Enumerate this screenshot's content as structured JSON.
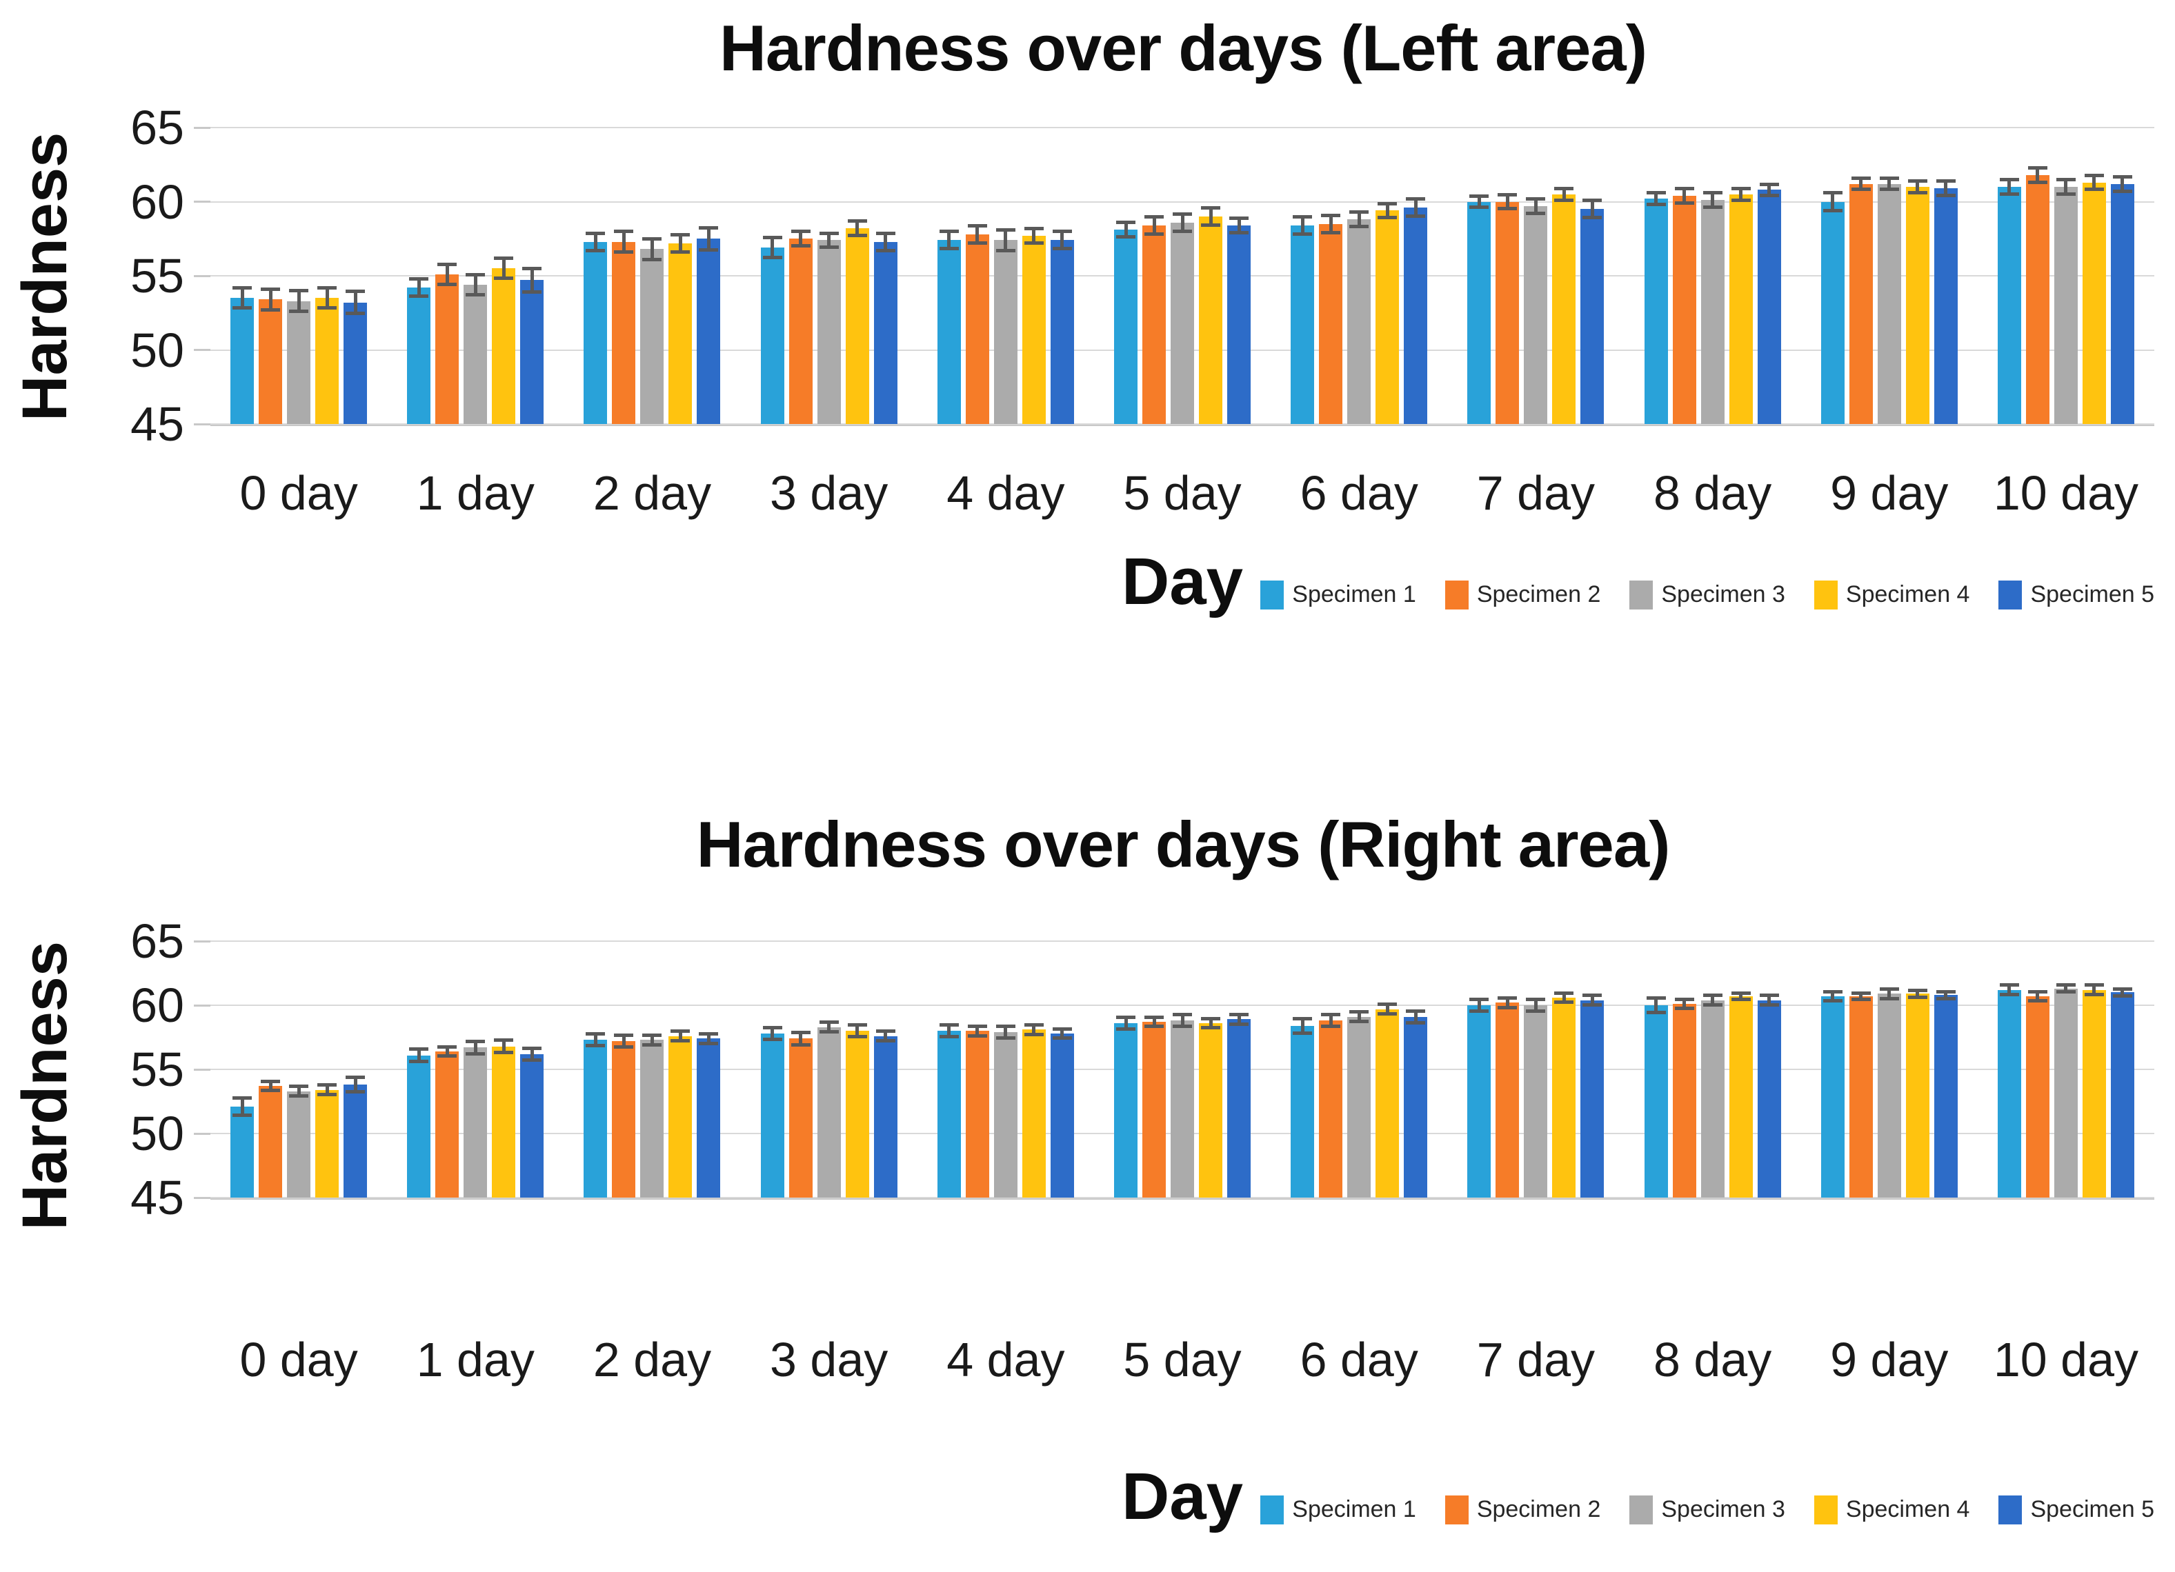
{
  "style": {
    "background": "#FFFFFF",
    "grid_color": "#D9D9D9",
    "axis_color": "#C8C8C8",
    "error_bar_color": "#595959",
    "text_color": "#1A1A1A"
  },
  "chart_data": [
    {
      "type": "bar",
      "title": "Hardness over days (Left area)",
      "xlabel": "Day",
      "ylabel": "Hardness",
      "ylim": [
        45,
        65
      ],
      "yticks": [
        65,
        60,
        55,
        50,
        45
      ],
      "grid": true,
      "error_bars": true,
      "legend_position": "bottom-right",
      "categories": [
        "0 day",
        "1 day",
        "2 day",
        "3 day",
        "4 day",
        "5 day",
        "6 day",
        "7 day",
        "8 day",
        "9 day",
        "10 day"
      ],
      "series": [
        {
          "name": "Specimen 1",
          "color": "#29A2D9",
          "values": [
            53.5,
            54.2,
            57.3,
            56.9,
            57.4,
            58.1,
            58.4,
            60.0,
            60.2,
            60.0,
            61.0
          ],
          "errors": [
            0.8,
            0.7,
            0.7,
            0.8,
            0.7,
            0.6,
            0.7,
            0.5,
            0.5,
            0.7,
            0.6
          ]
        },
        {
          "name": "Specimen 2",
          "color": "#F67C28",
          "values": [
            53.4,
            55.1,
            57.3,
            57.5,
            57.8,
            58.4,
            58.5,
            60.0,
            60.4,
            61.2,
            61.8
          ],
          "errors": [
            0.8,
            0.8,
            0.8,
            0.6,
            0.7,
            0.7,
            0.7,
            0.6,
            0.6,
            0.5,
            0.6
          ]
        },
        {
          "name": "Specimen 3",
          "color": "#ABABAB",
          "values": [
            53.3,
            54.4,
            56.8,
            57.4,
            57.4,
            58.6,
            58.8,
            59.7,
            60.1,
            61.2,
            61.0
          ],
          "errors": [
            0.8,
            0.8,
            0.8,
            0.6,
            0.8,
            0.7,
            0.6,
            0.6,
            0.6,
            0.5,
            0.6
          ]
        },
        {
          "name": "Specimen 4",
          "color": "#FFC30F",
          "values": [
            53.5,
            55.5,
            57.2,
            58.2,
            57.7,
            59.0,
            59.4,
            60.5,
            60.5,
            61.0,
            61.3
          ],
          "errors": [
            0.8,
            0.8,
            0.7,
            0.6,
            0.6,
            0.7,
            0.6,
            0.5,
            0.5,
            0.5,
            0.6
          ]
        },
        {
          "name": "Specimen 5",
          "color": "#2D6CC8",
          "values": [
            53.2,
            54.7,
            57.5,
            57.3,
            57.4,
            58.4,
            59.6,
            59.5,
            60.8,
            60.9,
            61.2
          ],
          "errors": [
            0.85,
            0.9,
            0.85,
            0.7,
            0.7,
            0.6,
            0.7,
            0.7,
            0.5,
            0.6,
            0.6
          ]
        }
      ]
    },
    {
      "type": "bar",
      "title": "Hardness over days (Right area)",
      "xlabel": "Day",
      "ylabel": "Hardness",
      "ylim": [
        45,
        65
      ],
      "yticks": [
        65,
        60,
        55,
        50,
        45
      ],
      "grid": true,
      "error_bars": true,
      "legend_position": "bottom-right",
      "categories": [
        "0 day",
        "1 day",
        "2 day",
        "3 day",
        "4 day",
        "5 day",
        "6 day",
        "7 day",
        "8 day",
        "9 day",
        "10 day"
      ],
      "series": [
        {
          "name": "Specimen 1",
          "color": "#29A2D9",
          "values": [
            52.1,
            56.1,
            57.3,
            57.8,
            58.0,
            58.6,
            58.4,
            60.0,
            60.0,
            60.7,
            61.2
          ],
          "errors": [
            0.8,
            0.6,
            0.6,
            0.6,
            0.6,
            0.6,
            0.7,
            0.6,
            0.7,
            0.5,
            0.5
          ]
        },
        {
          "name": "Specimen 2",
          "color": "#F67C28",
          "values": [
            53.7,
            56.4,
            57.2,
            57.4,
            58.0,
            58.7,
            58.8,
            60.2,
            60.1,
            60.7,
            60.7
          ],
          "errors": [
            0.5,
            0.5,
            0.6,
            0.6,
            0.5,
            0.5,
            0.6,
            0.5,
            0.5,
            0.4,
            0.5
          ]
        },
        {
          "name": "Specimen 3",
          "color": "#ABABAB",
          "values": [
            53.3,
            56.7,
            57.3,
            58.3,
            57.9,
            58.8,
            59.1,
            60.0,
            60.4,
            60.9,
            61.3
          ],
          "errors": [
            0.5,
            0.6,
            0.5,
            0.5,
            0.6,
            0.6,
            0.5,
            0.6,
            0.5,
            0.5,
            0.4
          ]
        },
        {
          "name": "Specimen 4",
          "color": "#FFC30F",
          "values": [
            53.4,
            56.8,
            57.6,
            58.0,
            58.1,
            58.6,
            59.7,
            60.6,
            60.7,
            60.9,
            61.2
          ],
          "errors": [
            0.5,
            0.6,
            0.5,
            0.6,
            0.5,
            0.5,
            0.5,
            0.5,
            0.4,
            0.4,
            0.5
          ]
        },
        {
          "name": "Specimen 5",
          "color": "#2D6CC8",
          "values": [
            53.8,
            56.2,
            57.4,
            57.6,
            57.8,
            58.9,
            59.1,
            60.4,
            60.4,
            60.8,
            61.0
          ],
          "errors": [
            0.7,
            0.6,
            0.5,
            0.5,
            0.5,
            0.5,
            0.6,
            0.5,
            0.5,
            0.4,
            0.4
          ]
        }
      ]
    }
  ]
}
